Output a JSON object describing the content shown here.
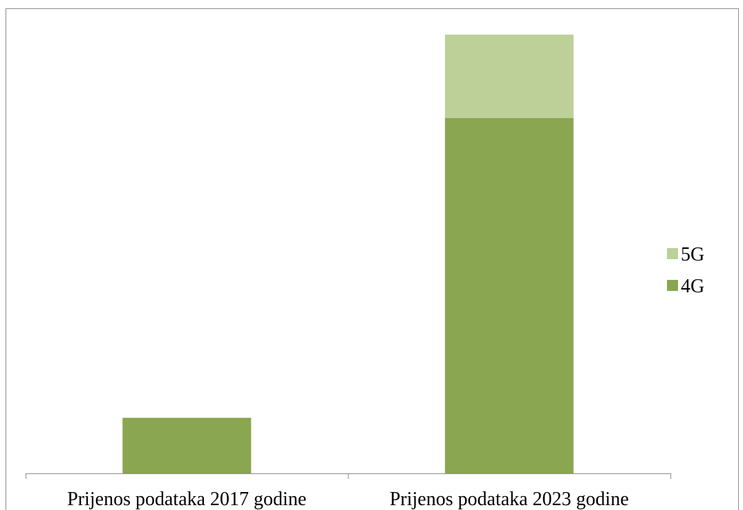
{
  "chart_data": {
    "type": "bar",
    "stacked": true,
    "title": "",
    "xlabel": "",
    "ylabel": "",
    "categories": [
      "Prijenos podataka 2017 godine",
      "Prijenos podataka 2023 godine"
    ],
    "series": [
      {
        "name": "4G",
        "color": "#8aa650",
        "values": [
          10,
          64
        ]
      },
      {
        "name": "5G",
        "color": "#bcd098",
        "values": [
          0,
          15
        ]
      }
    ],
    "ylim": [
      0,
      83
    ],
    "grid": false,
    "legend": {
      "position": "right",
      "order": [
        "5G",
        "4G"
      ]
    }
  }
}
